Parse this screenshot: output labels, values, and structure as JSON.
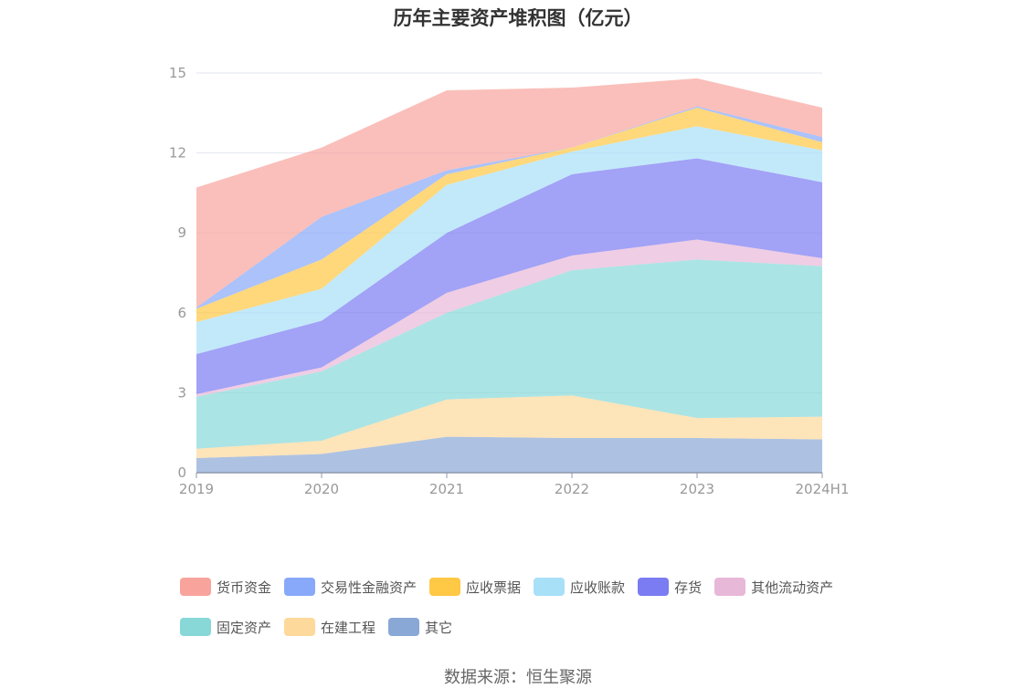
{
  "title": "历年主要资产堆积图（亿元）",
  "source": "数据来源：恒生聚源",
  "chart_data": {
    "type": "area",
    "stacked": true,
    "title": "历年主要资产堆积图（亿元）",
    "categories": [
      "2019",
      "2020",
      "2021",
      "2022",
      "2023",
      "2024H1"
    ],
    "ylim": [
      0,
      15
    ],
    "yticks": [
      0,
      3,
      6,
      9,
      12,
      15
    ],
    "grid": true,
    "legend_position": "bottom",
    "series": [
      {
        "name": "其它",
        "color": "#8aa8d6",
        "values": [
          0.55,
          0.7,
          1.35,
          1.3,
          1.3,
          1.25
        ]
      },
      {
        "name": "在建工程",
        "color": "#fdd99b",
        "values": [
          0.35,
          0.5,
          1.4,
          1.6,
          0.75,
          0.85
        ]
      },
      {
        "name": "固定资产",
        "color": "#88d8d8",
        "values": [
          1.95,
          2.6,
          3.25,
          4.7,
          5.95,
          5.65
        ]
      },
      {
        "name": "其他流动资产",
        "color": "#e8b8d8",
        "values": [
          0.1,
          0.15,
          0.75,
          0.55,
          0.75,
          0.3
        ]
      },
      {
        "name": "存货",
        "color": "#7b7bf2",
        "values": [
          1.5,
          1.75,
          2.25,
          3.05,
          3.05,
          2.85
        ]
      },
      {
        "name": "应收账款",
        "color": "#a8e0f8",
        "values": [
          1.2,
          1.2,
          1.8,
          0.85,
          1.2,
          1.2
        ]
      },
      {
        "name": "应收票据",
        "color": "#ffc845",
        "values": [
          0.5,
          1.1,
          0.4,
          0.15,
          0.7,
          0.3
        ]
      },
      {
        "name": "交易性金融资产",
        "color": "#88a8fa",
        "values": [
          0.05,
          1.6,
          0.15,
          0.0,
          0.05,
          0.2
        ]
      },
      {
        "name": "货币资金",
        "color": "#f8a49c",
        "values": [
          4.5,
          2.6,
          3.0,
          2.25,
          1.05,
          1.1
        ]
      }
    ],
    "legend_order": [
      "货币资金",
      "交易性金融资产",
      "应收票据",
      "应收账款",
      "存货",
      "其他流动资产",
      "固定资产",
      "在建工程",
      "其它"
    ]
  }
}
